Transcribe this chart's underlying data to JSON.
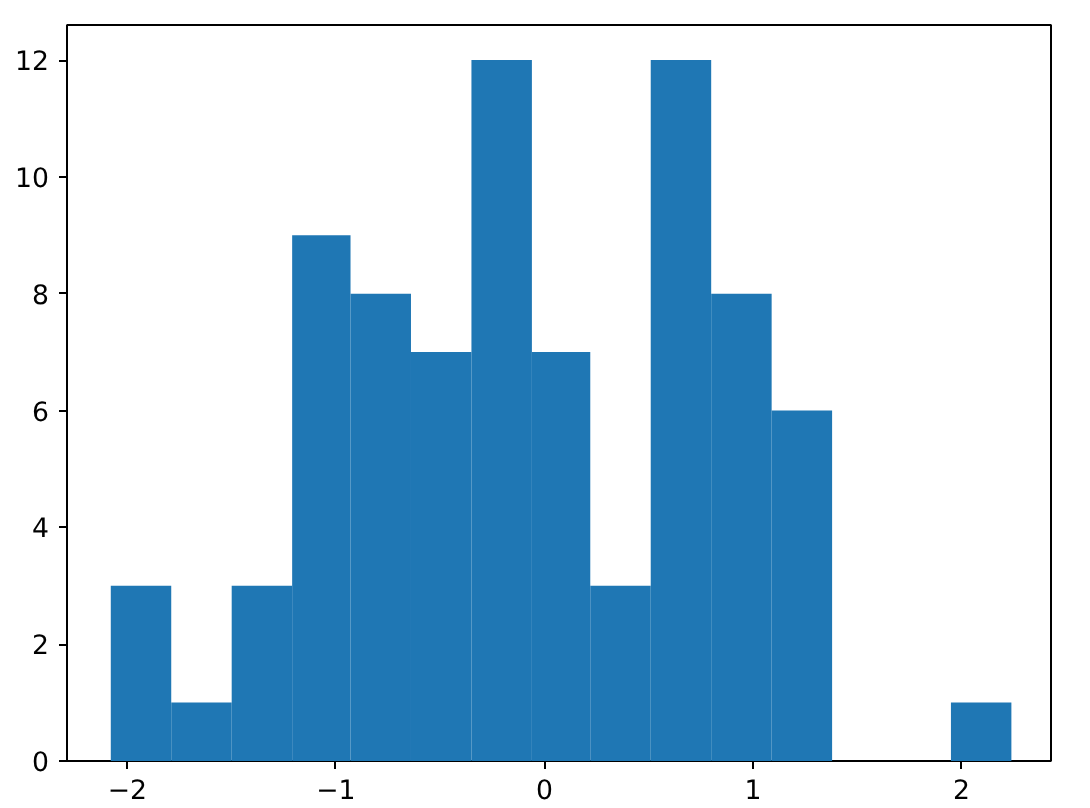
{
  "chart_data": {
    "type": "histogram",
    "color": "#1f77b4",
    "bins": [
      -2.08,
      -1.79,
      -1.5,
      -1.21,
      -0.93,
      -0.64,
      -0.35,
      -0.06,
      0.22,
      0.51,
      0.8,
      1.09,
      1.38,
      1.95,
      2.24
    ],
    "values": [
      3,
      1,
      3,
      9,
      8,
      7,
      12,
      7,
      3,
      12,
      8,
      6,
      0,
      1
    ],
    "xlim": [
      -2.29,
      2.43
    ],
    "ylim": [
      0,
      12.6
    ],
    "xticks": [
      {
        "value": -2,
        "label": "−2"
      },
      {
        "value": -1,
        "label": "−1"
      },
      0,
      1,
      2
    ],
    "yticks": [
      0,
      2,
      4,
      6,
      8,
      10,
      12
    ],
    "grid": false
  }
}
